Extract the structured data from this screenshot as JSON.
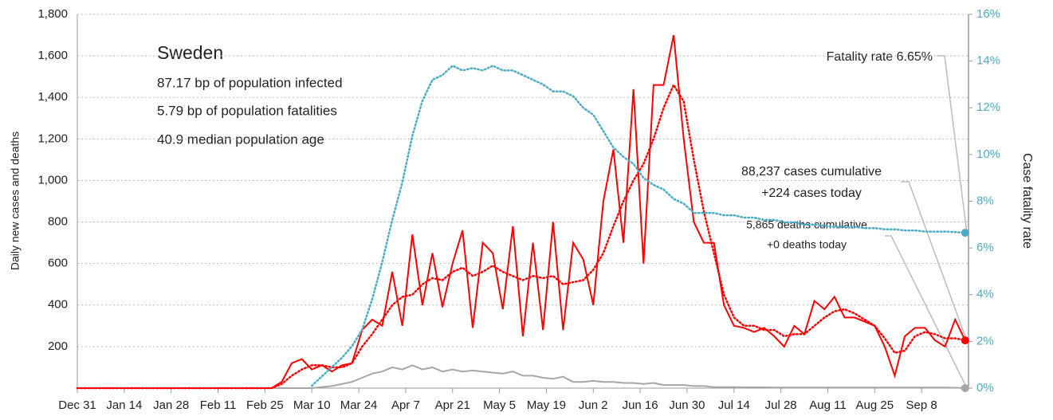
{
  "chart_data": {
    "type": "line",
    "info_title": "Sweden",
    "info_lines": [
      "87.17 bp of population infected",
      "5.79 bp of population fatalities",
      "40.9 median population age"
    ],
    "ylabel": "Daily new cases and deaths",
    "y2label": "Case fatality rate",
    "annotations": [
      "Fatality rate 6.65%",
      "88,237 cases cumulative",
      "+224 cases today",
      "5,865 deaths cumulative",
      "+0 deaths today"
    ],
    "xlim": [
      0,
      266
    ],
    "xticks": [
      {
        "value": 0,
        "label": "Dec 31"
      },
      {
        "value": 14,
        "label": "Jan 14"
      },
      {
        "value": 28,
        "label": "Jan 28"
      },
      {
        "value": 42,
        "label": "Feb 11"
      },
      {
        "value": 56,
        "label": "Feb 25"
      },
      {
        "value": 70,
        "label": "Mar 10"
      },
      {
        "value": 84,
        "label": "Mar 24"
      },
      {
        "value": 98,
        "label": "Apr 7"
      },
      {
        "value": 112,
        "label": "Apr 21"
      },
      {
        "value": 126,
        "label": "May 5"
      },
      {
        "value": 140,
        "label": "May 19"
      },
      {
        "value": 154,
        "label": "Jun 2"
      },
      {
        "value": 168,
        "label": "Jun 16"
      },
      {
        "value": 182,
        "label": "Jun 30"
      },
      {
        "value": 196,
        "label": "Jul 14"
      },
      {
        "value": 210,
        "label": "Jul 28"
      },
      {
        "value": 224,
        "label": "Aug 11"
      },
      {
        "value": 238,
        "label": "Aug 25"
      },
      {
        "value": 252,
        "label": "Sep 8"
      }
    ],
    "ylim": [
      0,
      1800
    ],
    "yticks": [
      200,
      400,
      600,
      800,
      {
        "value": 1000,
        "label": "1,000"
      },
      {
        "value": 1200,
        "label": "1,200"
      },
      {
        "value": 1400,
        "label": "1,400"
      },
      {
        "value": 1600,
        "label": "1,600"
      },
      {
        "value": 1800,
        "label": "1,800"
      }
    ],
    "y2lim": [
      0,
      16
    ],
    "y2ticks": [
      {
        "value": 0,
        "label": "0%"
      },
      {
        "value": 2,
        "label": "2%"
      },
      {
        "value": 4,
        "label": "4%"
      },
      {
        "value": 6,
        "label": "6%"
      },
      {
        "value": 8,
        "label": "8%"
      },
      {
        "value": 10,
        "label": "10%"
      },
      {
        "value": 12,
        "label": "12%"
      },
      {
        "value": 14,
        "label": "14%"
      },
      {
        "value": 16,
        "label": "16%"
      }
    ],
    "grid": true,
    "y2color": "#4bacc6",
    "x": [
      0,
      55,
      58,
      61,
      64,
      67,
      70,
      73,
      76,
      79,
      82,
      85,
      88,
      91,
      94,
      97,
      100,
      103,
      106,
      109,
      112,
      115,
      118,
      121,
      124,
      127,
      130,
      133,
      136,
      139,
      142,
      145,
      148,
      151,
      154,
      157,
      160,
      163,
      166,
      169,
      172,
      175,
      178,
      181,
      184,
      187,
      190,
      193,
      196,
      199,
      202,
      205,
      208,
      211,
      214,
      217,
      220,
      223,
      226,
      229,
      232,
      235,
      238,
      241,
      244,
      247,
      250,
      253,
      256,
      259,
      262,
      265
    ],
    "series": [
      {
        "color": "#a6a6a6",
        "line_style": "solid",
        "end_marker": true,
        "values": [
          0,
          0,
          0,
          0,
          0,
          0,
          0,
          5,
          10,
          20,
          30,
          50,
          70,
          80,
          100,
          90,
          110,
          90,
          100,
          80,
          90,
          80,
          85,
          80,
          75,
          70,
          80,
          60,
          60,
          50,
          45,
          55,
          30,
          30,
          35,
          30,
          30,
          25,
          25,
          20,
          25,
          15,
          15,
          15,
          10,
          10,
          5,
          5,
          5,
          4,
          4,
          4,
          3,
          3,
          3,
          3,
          3,
          3,
          3,
          3,
          3,
          3,
          3,
          3,
          3,
          3,
          3,
          3,
          3,
          3,
          2,
          0
        ]
      },
      {
        "color": "#ff0000",
        "line_style": "dotted",
        "end_marker": false,
        "values": [
          0,
          0,
          0,
          20,
          60,
          90,
          110,
          110,
          100,
          100,
          120,
          200,
          260,
          330,
          400,
          440,
          450,
          500,
          530,
          520,
          560,
          580,
          540,
          560,
          590,
          560,
          540,
          520,
          540,
          530,
          540,
          500,
          510,
          520,
          570,
          650,
          780,
          900,
          1000,
          1080,
          1200,
          1350,
          1460,
          1380,
          1100,
          850,
          650,
          450,
          340,
          300,
          300,
          280,
          280,
          250,
          260,
          260,
          300,
          340,
          370,
          380,
          360,
          330,
          300,
          240,
          170,
          180,
          250,
          270,
          260,
          240,
          240,
          230
        ]
      },
      {
        "color": "#ff0000",
        "line_style": "solid",
        "end_marker": true,
        "values": [
          0,
          0,
          0,
          30,
          120,
          140,
          90,
          110,
          80,
          110,
          120,
          280,
          330,
          300,
          560,
          300,
          740,
          400,
          650,
          390,
          600,
          760,
          290,
          700,
          650,
          380,
          780,
          250,
          700,
          280,
          800,
          280,
          700,
          620,
          400,
          900,
          1150,
          700,
          1440,
          600,
          1460,
          1460,
          1700,
          1200,
          800,
          700,
          700,
          400,
          300,
          290,
          270,
          290,
          250,
          200,
          300,
          260,
          420,
          380,
          440,
          340,
          340,
          320,
          300,
          200,
          60,
          250,
          290,
          290,
          230,
          200,
          330,
          230
        ]
      },
      {
        "color": "#4bacc6",
        "line_style": "dotted",
        "end_marker": true,
        "axis": "y2",
        "values": [
          null,
          null,
          null,
          null,
          null,
          null,
          0.1,
          0.5,
          0.9,
          1.3,
          1.8,
          2.5,
          3.8,
          5.4,
          7.2,
          8.8,
          10.8,
          12.3,
          13.2,
          13.4,
          13.8,
          13.6,
          13.7,
          13.6,
          13.8,
          13.6,
          13.6,
          13.4,
          13.2,
          13.0,
          12.7,
          12.7,
          12.5,
          12.0,
          11.7,
          11.0,
          10.3,
          9.9,
          9.6,
          9.0,
          8.7,
          8.5,
          8.1,
          7.9,
          7.5,
          7.5,
          7.5,
          7.4,
          7.4,
          7.3,
          7.3,
          7.2,
          7.2,
          7.1,
          7.1,
          7.0,
          7.0,
          6.95,
          6.9,
          6.9,
          6.9,
          6.85,
          6.85,
          6.8,
          6.8,
          6.75,
          6.75,
          6.7,
          6.7,
          6.7,
          6.68,
          6.65
        ]
      }
    ]
  }
}
